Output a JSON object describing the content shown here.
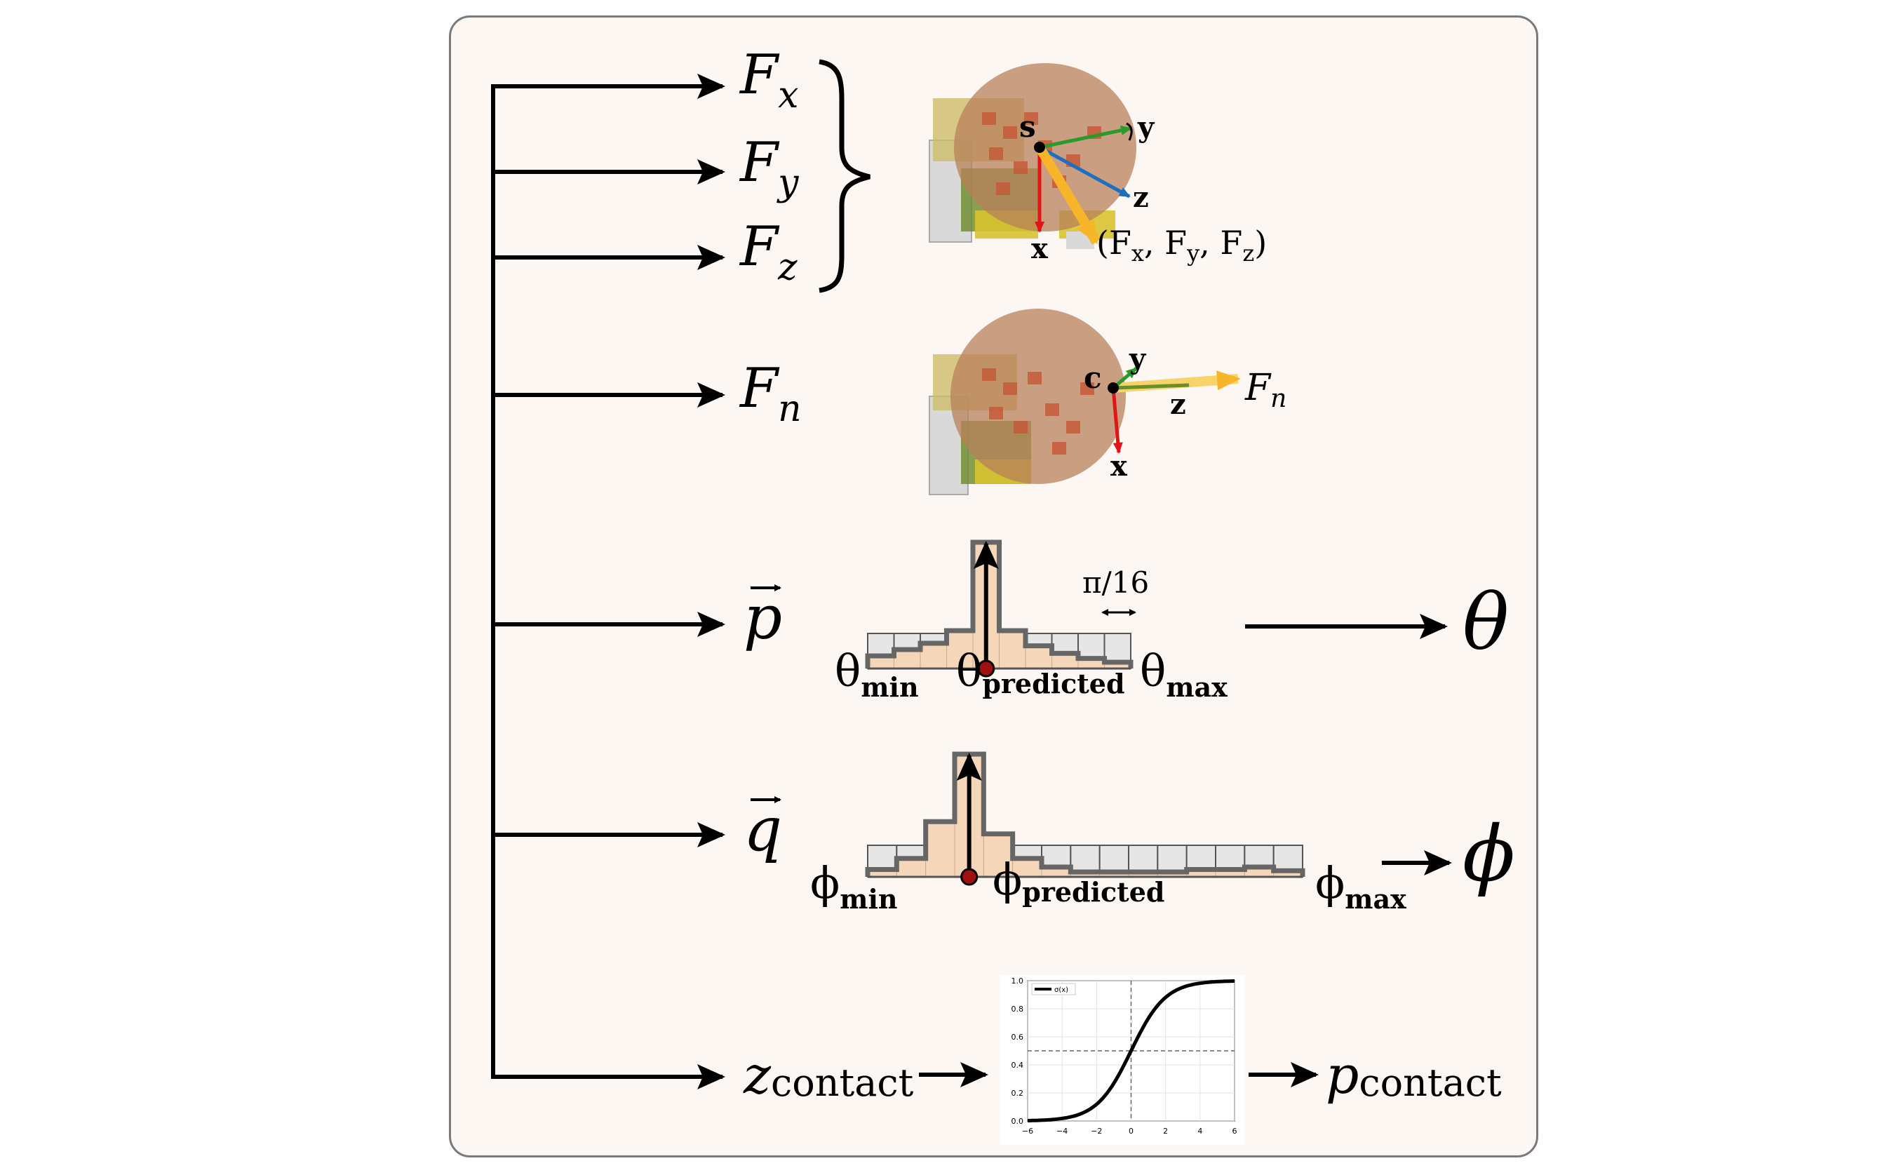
{
  "outputs": {
    "fx": {
      "base": "F",
      "sub": "x"
    },
    "fy": {
      "base": "F",
      "sub": "y"
    },
    "fz": {
      "base": "F",
      "sub": "z"
    },
    "fn": {
      "base": "F",
      "sub": "n"
    },
    "p": "p",
    "q": "q",
    "z_contact": {
      "base": "z",
      "sub": "contact"
    }
  },
  "sensor_s": {
    "point": "s",
    "axes": {
      "x": "x",
      "y": "y",
      "z": "z"
    },
    "force_label": "(F",
    "force_parts": [
      {
        "sub": "x",
        "sep": ", F"
      },
      {
        "sub": "y",
        "sep": ", F"
      },
      {
        "sub": "z",
        "sep": ")"
      }
    ]
  },
  "sensor_c": {
    "point": "c",
    "axes": {
      "x": "x",
      "y": "y",
      "z": "z"
    },
    "force": {
      "base": "F",
      "sub": "n"
    }
  },
  "theta_hist": {
    "bin_width_label": "π/16",
    "min": {
      "base": "θ",
      "sub": "min"
    },
    "pred": {
      "base": "θ",
      "sub": "predicted"
    },
    "max": {
      "base": "θ",
      "sub": "max"
    },
    "result": "θ",
    "bin_probs": [
      0.1,
      0.15,
      0.2,
      0.3,
      1.0,
      0.3,
      0.18,
      0.12,
      0.08,
      0.05
    ],
    "pred_bin": 4
  },
  "phi_hist": {
    "min": {
      "base": "ϕ",
      "sub": "min"
    },
    "pred": {
      "base": "ϕ",
      "sub": "predicted"
    },
    "max": {
      "base": "ϕ",
      "sub": "max"
    },
    "result": "ϕ",
    "bin_probs": [
      0.06,
      0.15,
      0.45,
      1.0,
      0.35,
      0.15,
      0.08,
      0.04,
      0.04,
      0.04,
      0.04,
      0.06,
      0.06,
      0.08,
      0.05
    ],
    "pred_bin": 3
  },
  "p_contact": {
    "base": "p",
    "sub": "contact"
  },
  "sigmoid_chart": {
    "legend": "σ(x)",
    "x_ticks": [
      "−6",
      "−4",
      "−2",
      "0",
      "2",
      "4",
      "6"
    ],
    "y_ticks": [
      "0.0",
      "0.2",
      "0.4",
      "0.6",
      "0.8",
      "1.0"
    ],
    "chart_data": {
      "type": "line",
      "x": [
        -6,
        -5,
        -4,
        -3,
        -2,
        -1,
        0,
        1,
        2,
        3,
        4,
        5,
        6
      ],
      "series": [
        {
          "name": "σ(x)",
          "values": [
            0.0025,
            0.0067,
            0.018,
            0.047,
            0.119,
            0.269,
            0.5,
            0.731,
            0.881,
            0.953,
            0.982,
            0.993,
            0.9975
          ]
        }
      ],
      "xlim": [
        -6,
        6
      ],
      "ylim": [
        0,
        1
      ],
      "grid": true,
      "legend_position": "top-left"
    }
  },
  "colors": {
    "panel_bg": "#fdf7f4",
    "hist_fill": "#f6d6b8",
    "hist_empty": "#e6e6e6",
    "pred_dot": "#a01010",
    "force_arrow": "#f7b62a",
    "axis_x": "#e01515",
    "axis_y": "#2a9a2a",
    "axis_z": "#1f6fc0"
  }
}
